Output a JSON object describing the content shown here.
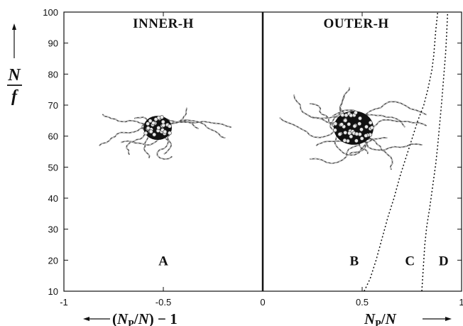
{
  "chart_data": {
    "type": "line",
    "xlim": [
      -1,
      1
    ],
    "ylim": [
      10,
      100
    ],
    "x_ticks": [
      "-1",
      "-0.5",
      "0",
      "0.5",
      "1"
    ],
    "y_ticks": [
      "10",
      "20",
      "30",
      "40",
      "50",
      "60",
      "70",
      "80",
      "90",
      "100"
    ],
    "ylabel": {
      "numerator": "N",
      "denominator": "f"
    },
    "xlabel_left": "(N_P/N) − 1",
    "xlabel_right": "N_P/N",
    "regions": [
      {
        "title": "INNER-H",
        "letter": "A"
      },
      {
        "title": "OUTER-H",
        "letter": "B"
      }
    ],
    "curve_labels": [
      "C",
      "D"
    ],
    "series": [
      {
        "name": "C",
        "x": [
          0.51,
          0.54,
          0.57,
          0.6,
          0.63,
          0.66,
          0.69,
          0.72,
          0.75,
          0.78,
          0.81,
          0.83,
          0.85,
          0.86,
          0.865,
          0.87,
          0.875,
          0.88
        ],
        "y": [
          10,
          14,
          20,
          27,
          34,
          40,
          47,
          53,
          59,
          65,
          70,
          75,
          81,
          86,
          90,
          94,
          97,
          100
        ]
      },
      {
        "name": "D",
        "x": [
          0.8,
          0.805,
          0.81,
          0.815,
          0.825,
          0.84,
          0.855,
          0.87,
          0.88,
          0.89,
          0.9,
          0.91,
          0.92,
          0.925,
          0.93
        ],
        "y": [
          10,
          15,
          20,
          25,
          31,
          37,
          44,
          51,
          57,
          64,
          71,
          79,
          87,
          93,
          100
        ]
      }
    ]
  }
}
